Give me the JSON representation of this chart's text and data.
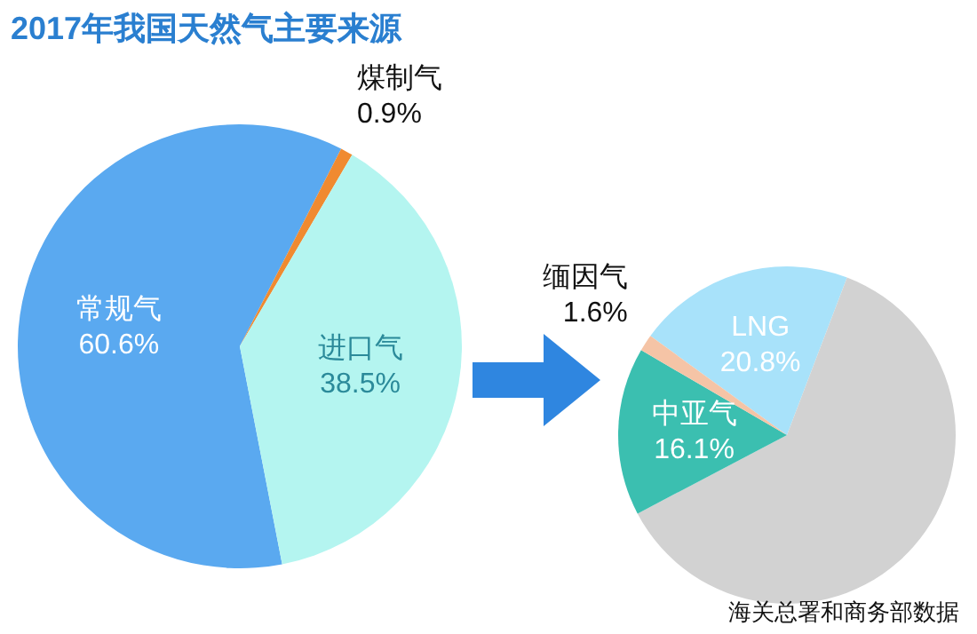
{
  "chart_data": [
    {
      "type": "pie",
      "title": "2017年我国天然气主要来源",
      "categories": [
        "常规气",
        "煤制气",
        "进口气"
      ],
      "values": [
        60.6,
        0.9,
        38.5
      ],
      "value_labels": [
        "60.6%",
        "0.9%",
        "38.5%"
      ],
      "colors": [
        "#5aa9f0",
        "#f08a30",
        "#b4f5f0"
      ]
    },
    {
      "type": "pie",
      "categories": [
        "LNG",
        null,
        "中亚气",
        "缅因气"
      ],
      "values": [
        20.8,
        61.5,
        16.1,
        1.6
      ],
      "value_labels": [
        "20.8%",
        null,
        "16.1%",
        "1.6%"
      ],
      "colors": [
        "#a8e2fa",
        "#d2d2d2",
        "#3bbfb0",
        "#f5c4a6"
      ],
      "annotations": [
        "海关总署和商务部数据"
      ]
    }
  ]
}
